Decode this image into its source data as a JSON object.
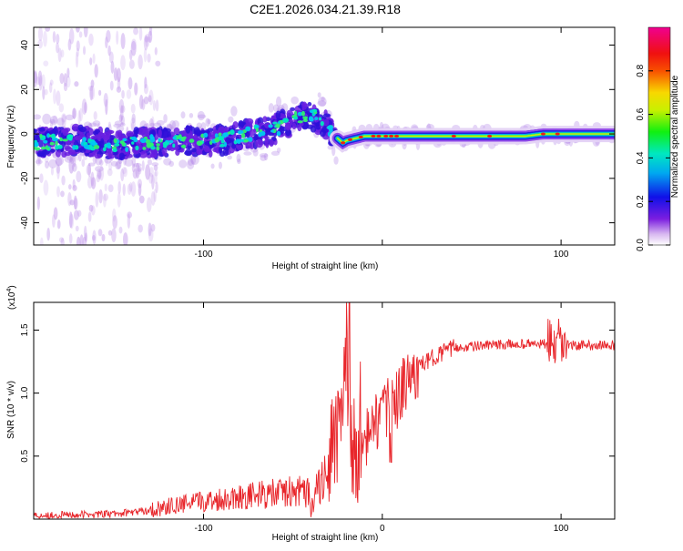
{
  "title": "C2E1.2026.034.21.39.R18",
  "chart_data": [
    {
      "type": "heatmap",
      "xlabel": "Height of straight line (km)",
      "ylabel": "Frequency (Hz)",
      "xlim": [
        -195,
        130
      ],
      "ylim": [
        -50,
        48
      ],
      "xticks": [
        -100,
        0,
        100
      ],
      "xtick_labels": [
        "-100",
        "",
        "100"
      ],
      "yticks": [
        -40,
        -20,
        0,
        20,
        40
      ],
      "ytick_labels": [
        "-40",
        "-20",
        "0",
        "20",
        "40"
      ],
      "ridge": {
        "x": [
          -195,
          -170,
          -150,
          -130,
          -110,
          -90,
          -75,
          -60,
          -50,
          -42,
          -35,
          -30,
          -25,
          -22,
          -20,
          -15,
          -10,
          0,
          10,
          40,
          80,
          90,
          100,
          130
        ],
        "y": [
          -4,
          -3,
          -5,
          -4,
          -3,
          -3,
          0,
          2,
          6,
          9,
          7,
          3,
          -2,
          -4,
          -3,
          -2,
          -1,
          -1,
          -1,
          -1,
          -1,
          0,
          0,
          0
        ]
      },
      "colorbar": {
        "label": "Normalized spectral amplitude",
        "range": [
          0,
          1
        ],
        "ticks": [
          0.0,
          0.2,
          0.4,
          0.6,
          0.8
        ],
        "tick_labels": [
          "0.0",
          "0.2",
          "0.4",
          "0.6",
          "0.8"
        ]
      }
    },
    {
      "type": "line",
      "xlabel": "Height of straight line (km)",
      "ylabel": "SNR (10 * v/v)",
      "multiplier": "(x10",
      "multiplier_exp": "4",
      "multiplier_close": ")",
      "xlim": [
        -195,
        130
      ],
      "ylim": [
        0,
        1.72
      ],
      "xticks": [
        -100,
        0,
        100
      ],
      "xtick_labels": [
        "-100",
        "0",
        "100"
      ],
      "yticks": [
        0.5,
        1.0,
        1.5
      ],
      "ytick_labels": [
        "0.5",
        "1.0",
        "1.5"
      ],
      "series": [
        {
          "name": "SNR",
          "color": "#e8262b",
          "x": [
            -195,
            -150,
            -130,
            -120,
            -100,
            -80,
            -60,
            -50,
            -40,
            -35,
            -30,
            -25,
            -22,
            -20,
            -18,
            -15,
            -10,
            -5,
            0,
            5,
            10,
            15,
            20,
            30,
            40,
            60,
            80,
            95,
            100,
            105,
            130
          ],
          "y": [
            0.03,
            0.04,
            0.07,
            0.1,
            0.14,
            0.18,
            0.2,
            0.22,
            0.2,
            0.25,
            0.45,
            0.65,
            0.9,
            1.1,
            0.7,
            0.45,
            0.6,
            0.75,
            0.82,
            0.9,
            1.0,
            1.1,
            1.2,
            1.3,
            1.36,
            1.38,
            1.39,
            1.39,
            1.4,
            1.38,
            1.38
          ]
        }
      ]
    }
  ]
}
